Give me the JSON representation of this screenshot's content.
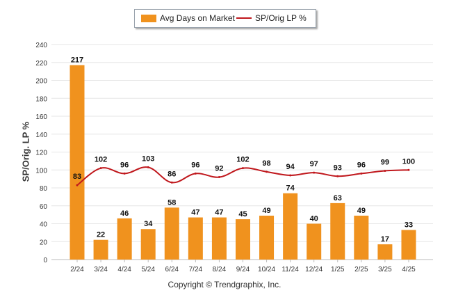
{
  "chart_data": {
    "type": "bar+line",
    "categories": [
      "2/24",
      "3/24",
      "4/24",
      "5/24",
      "6/24",
      "7/24",
      "8/24",
      "9/24",
      "10/24",
      "11/24",
      "12/24",
      "1/25",
      "2/25",
      "3/25",
      "4/25"
    ],
    "series": [
      {
        "name": "Avg Days on Market",
        "type": "bar",
        "color": "#f0921e",
        "values": [
          217,
          22,
          46,
          34,
          58,
          47,
          47,
          45,
          49,
          74,
          40,
          63,
          49,
          17,
          33
        ]
      },
      {
        "name": "SP/Orig LP %",
        "type": "line",
        "color": "#c0171c",
        "values": [
          83,
          102,
          96,
          103,
          86,
          96,
          92,
          102,
          98,
          94,
          97,
          93,
          96,
          99,
          100
        ]
      }
    ],
    "ylabel": "SP/Orig. LP %",
    "ylim": [
      0,
      240
    ],
    "yticks": [
      0,
      20,
      40,
      60,
      80,
      100,
      120,
      140,
      160,
      180,
      200,
      220,
      240
    ],
    "grid": true,
    "legend_position": "top-center"
  },
  "legend": {
    "bar_label": "Avg Days on Market",
    "line_label": "SP/Orig LP %"
  },
  "axis": {
    "ylabel": "SP/Orig. LP %"
  },
  "footer": {
    "copyright": "Copyright © Trendgraphix, Inc."
  }
}
